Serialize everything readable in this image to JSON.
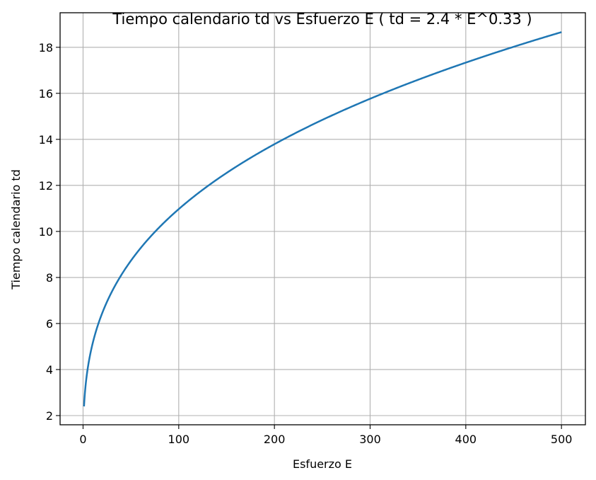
{
  "chart_data": {
    "type": "line",
    "title": "Tiempo calendario td vs Esfuerzo E ( td = 2.4 * E^0.33 )",
    "xlabel": "Esfuerzo E",
    "ylabel": "Tiempo calendario td",
    "formula": {
      "coefficient": 2.4,
      "exponent": 0.33
    },
    "x_range": [
      1,
      500
    ],
    "xlim": [
      -24,
      525
    ],
    "ylim": [
      1.6,
      19.5
    ],
    "xticks": [
      0,
      100,
      200,
      300,
      400,
      500
    ],
    "yticks": [
      2,
      4,
      6,
      8,
      10,
      12,
      14,
      16,
      18
    ],
    "x": [
      1,
      2,
      5,
      10,
      20,
      30,
      50,
      75,
      100,
      150,
      200,
      250,
      300,
      350,
      400,
      450,
      500
    ],
    "y": [
      2.4,
      3.01,
      4.06,
      5.13,
      6.46,
      7.39,
      8.76,
      10.02,
      10.99,
      12.57,
      13.85,
      14.92,
      15.86,
      16.69,
      17.46,
      18.15,
      18.8
    ],
    "grid": true,
    "color": "#1f77b4"
  }
}
